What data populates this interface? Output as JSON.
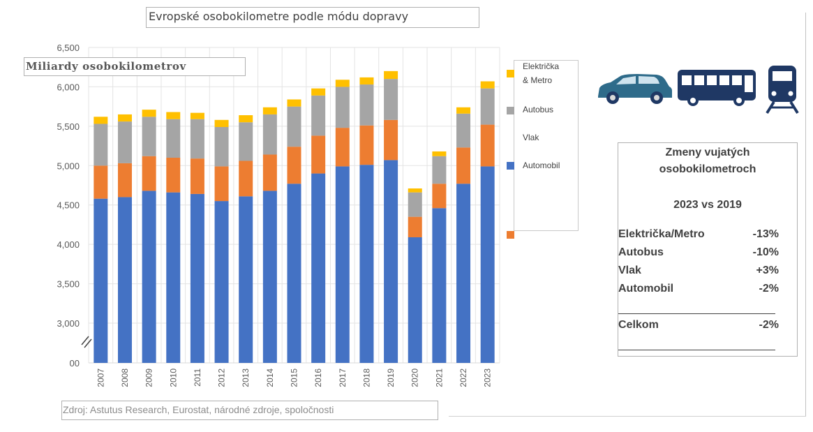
{
  "chart_data": {
    "type": "bar",
    "stacked": true,
    "title": "Evropské osobokilometre podle módu dopravy",
    "ylabel": "Miliardy osobokilometrov",
    "categories": [
      "2007",
      "2008",
      "2009",
      "2010",
      "2011",
      "2012",
      "2013",
      "2014",
      "2015",
      "2016",
      "2017",
      "2018",
      "2019",
      "2020",
      "2021",
      "2022",
      "2023"
    ],
    "series": [
      {
        "name": "Automobil",
        "color": "#4472c4",
        "values": [
          4580,
          4600,
          4680,
          4660,
          4640,
          4550,
          4610,
          4680,
          4770,
          4900,
          4990,
          5010,
          5070,
          4090,
          4460,
          4770,
          4990
        ]
      },
      {
        "name": "Vlak",
        "color": "#ed7d31",
        "values": [
          420,
          430,
          440,
          440,
          450,
          440,
          450,
          460,
          470,
          480,
          490,
          500,
          510,
          260,
          310,
          460,
          530
        ]
      },
      {
        "name": "Autobus",
        "color": "#a5a5a5",
        "values": [
          530,
          530,
          500,
          490,
          500,
          500,
          490,
          510,
          510,
          510,
          520,
          520,
          520,
          310,
          350,
          430,
          460
        ]
      },
      {
        "name": "Električka & Metro",
        "color": "#ffc000",
        "values": [
          90,
          90,
          90,
          90,
          80,
          90,
          90,
          90,
          90,
          90,
          90,
          90,
          100,
          50,
          60,
          80,
          90
        ]
      }
    ],
    "y_ticks": [
      "6,500",
      "6,000",
      "5,500",
      "5,000",
      "4,500",
      "4,000",
      "3,500",
      "3,000",
      "00"
    ],
    "ylim": [
      2700,
      6500
    ],
    "axis_break": true,
    "grid": true,
    "legend_position": "right"
  },
  "legend": [
    {
      "label": "Električka\n& Metro",
      "color": "#ffc000"
    },
    {
      "label": "Autobus",
      "color": "#a5a5a5"
    },
    {
      "label": "Vlak",
      "color": ""
    },
    {
      "label": "Automobil",
      "color": "#4472c4"
    },
    {
      "label": "",
      "color": "#ed7d31"
    }
  ],
  "summary": {
    "title": "Zmeny vujatých\nosobokilometroch",
    "subtitle": "2023 vs 2019",
    "rows": [
      {
        "label": "Električka/Metro",
        "value": "-13%"
      },
      {
        "label": "Autobus",
        "value": "-10%"
      },
      {
        "label": "Vlak",
        "value": "+3%"
      },
      {
        "label": "Automobil",
        "value": "-2%"
      }
    ],
    "total": {
      "label": "Celkom",
      "value": "-2%"
    }
  },
  "source": "Zdroj: Astutus Research, Eurostat, národné zdroje, spoločnosti",
  "icons": [
    "car-icon",
    "bus-icon",
    "train-icon"
  ],
  "icon_color": "#1f3864",
  "car_color": "#2e6b8a"
}
